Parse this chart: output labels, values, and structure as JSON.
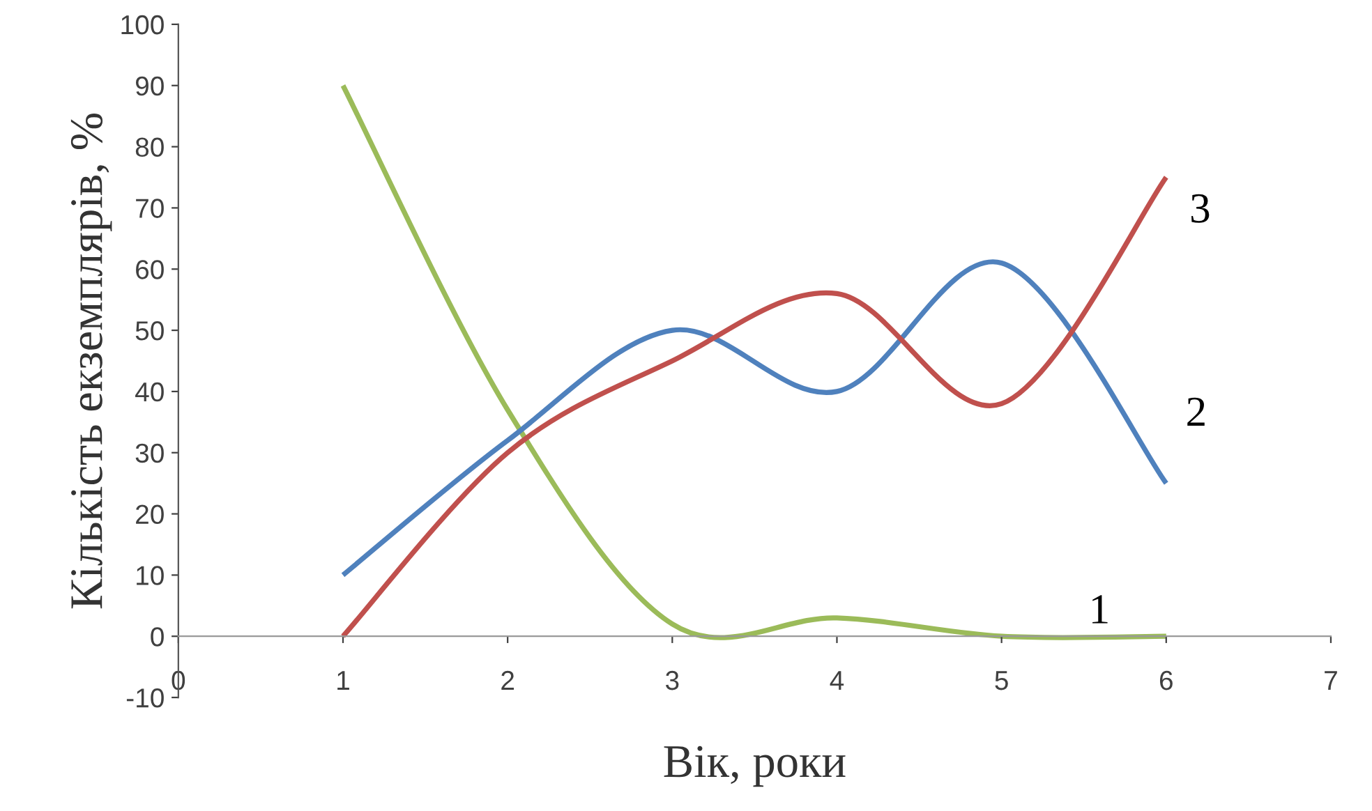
{
  "chart_data": {
    "type": "line",
    "xlabel": "Вік, роки",
    "ylabel": "Кількість екземплярів, %",
    "xlim": [
      0,
      7
    ],
    "xticks": [
      0,
      1,
      2,
      3,
      4,
      5,
      6,
      7
    ],
    "ylim": [
      -10,
      100
    ],
    "yticks": [
      -10,
      0,
      10,
      20,
      30,
      40,
      50,
      60,
      70,
      80,
      90,
      100
    ],
    "x": [
      1,
      2,
      3,
      4,
      5,
      6
    ],
    "grid": false,
    "legend": false,
    "marker": "none",
    "line_style": "solid",
    "series": [
      {
        "name": "1",
        "color": "#9bbb59",
        "values": [
          90,
          37,
          2,
          3,
          0,
          0
        ]
      },
      {
        "name": "2",
        "color": "#4f81bd",
        "values": [
          10,
          32,
          50,
          40,
          61,
          25
        ]
      },
      {
        "name": "3",
        "color": "#c0504d",
        "values": [
          0,
          30,
          45,
          56,
          38,
          75
        ]
      }
    ]
  }
}
